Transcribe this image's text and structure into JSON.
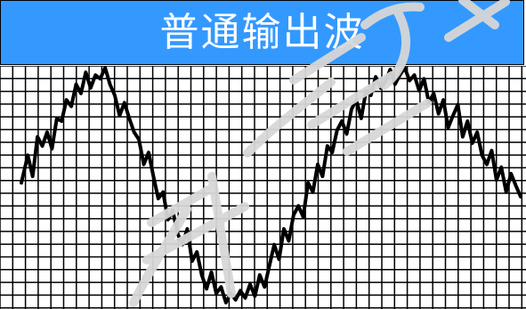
{
  "title": "普通输出波",
  "colors": {
    "header_bg": "#3399ff",
    "header_text": "#ffffff",
    "grid_line": "#000000",
    "wave": "#000000",
    "background": "#ffffff",
    "watermark": "#d7d7d7"
  },
  "chart_data": {
    "type": "line",
    "title": "",
    "xlabel": "",
    "ylabel": "",
    "grid": true,
    "legend": "none",
    "xlim": [
      0,
      1.55
    ],
    "ylim": [
      -1.3,
      1.3
    ],
    "series": [
      {
        "x": [
          0,
          0.02,
          0.035,
          0.05,
          0.065,
          0.08,
          0.095,
          0.11,
          0.125,
          0.14,
          0.155,
          0.17,
          0.185,
          0.2,
          0.215,
          0.23,
          0.245,
          0.26,
          0.275,
          0.29,
          0.305,
          0.32,
          0.335,
          0.35,
          0.365,
          0.38,
          0.395,
          0.41,
          0.425,
          0.44,
          0.455,
          0.47,
          0.485,
          0.5,
          0.515,
          0.53,
          0.545,
          0.56,
          0.575,
          0.59,
          0.605,
          0.62,
          0.635,
          0.65,
          0.665,
          0.68,
          0.695,
          0.71,
          0.725,
          0.74,
          0.755,
          0.77,
          0.785,
          0.8,
          0.815,
          0.83,
          0.845,
          0.86,
          0.875,
          0.89,
          0.905,
          0.92,
          0.935,
          0.95,
          0.965,
          0.98,
          0.995,
          1.01,
          1.025,
          1.04,
          1.055,
          1.07,
          1.085,
          1.1,
          1.115,
          1.13,
          1.145,
          1.16,
          1.175,
          1.19,
          1.205,
          1.22,
          1.235,
          1.25,
          1.265,
          1.28,
          1.295,
          1.31,
          1.325,
          1.34,
          1.355,
          1.37,
          1.385,
          1.4,
          1.415,
          1.43,
          1.445,
          1.46,
          1.475,
          1.49,
          1.505,
          1.52,
          1.535,
          1.55
        ],
        "y": [
          0.05,
          0.35,
          0.12,
          0.55,
          0.45,
          0.6,
          0.42,
          0.75,
          0.72,
          0.95,
          0.88,
          1.12,
          1.02,
          1.25,
          1.08,
          1.22,
          1.18,
          1.3,
          1.12,
          1.0,
          0.78,
          0.92,
          0.75,
          0.6,
          0.52,
          0.25,
          0.38,
          0.12,
          -0.12,
          -0.05,
          -0.35,
          -0.25,
          -0.5,
          -0.62,
          -0.45,
          -0.8,
          -0.7,
          -0.95,
          -1.1,
          -0.92,
          -1.15,
          -1.08,
          -1.25,
          -1.15,
          -1.22,
          -1.12,
          -1.2,
          -1.05,
          -1.18,
          -0.95,
          -1.08,
          -0.85,
          -0.62,
          -0.78,
          -0.45,
          -0.58,
          -0.3,
          -0.2,
          -0.32,
          0.05,
          -0.05,
          0.25,
          0.12,
          0.45,
          0.38,
          0.62,
          0.72,
          0.58,
          0.85,
          0.95,
          0.75,
          1.05,
          1.0,
          1.2,
          1.08,
          1.15,
          1.28,
          1.12,
          1.22,
          1.3,
          1.16,
          1.22,
          1.05,
          1.18,
          0.92,
          1.02,
          0.8,
          0.95,
          0.65,
          0.78,
          0.9,
          0.55,
          0.72,
          0.48,
          0.6,
          0.35,
          0.25,
          0.4,
          0.08,
          0.22,
          -0.05,
          0.15,
          0.02,
          -0.1
        ]
      }
    ]
  }
}
